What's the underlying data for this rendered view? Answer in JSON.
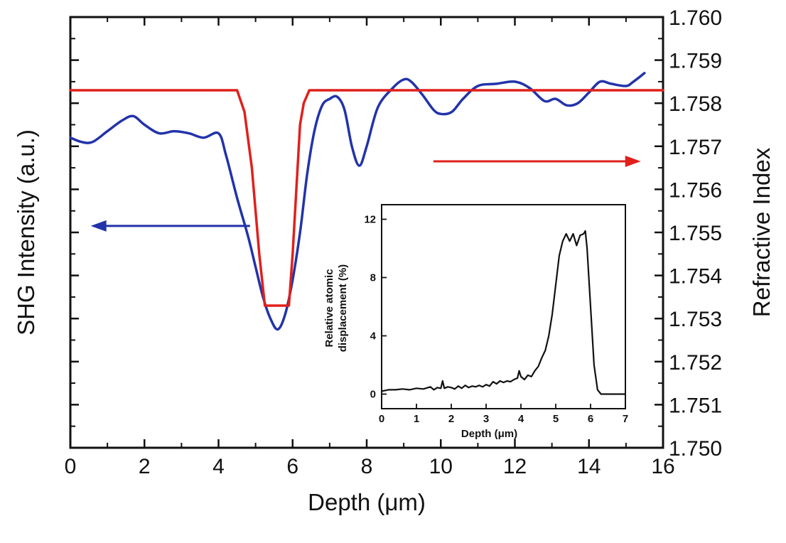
{
  "chart_data": {
    "type": "line",
    "main": {
      "xlabel": "Depth (μm)",
      "ylabel_left": "SHG Intensity (a.u.)",
      "ylabel_right": "Refractive Index",
      "xlim": [
        0,
        16
      ],
      "x_ticks": [
        "0",
        "2",
        "4",
        "6",
        "8",
        "10",
        "12",
        "14",
        "16"
      ],
      "ylim_right": [
        1.75,
        1.76
      ],
      "right_ticks": [
        "1.750",
        "1.751",
        "1.752",
        "1.753",
        "1.754",
        "1.755",
        "1.756",
        "1.757",
        "1.758",
        "1.759",
        "1.760"
      ],
      "left_axis_units": "arbitrary (0-10 scale, unlabeled ticks)",
      "series": [
        {
          "name": "SHG Intensity",
          "axis": "left",
          "color": "#2233aa",
          "x": [
            0,
            0.3,
            0.6,
            1.0,
            1.4,
            1.7,
            2.0,
            2.4,
            2.8,
            3.2,
            3.6,
            4.0,
            4.2,
            4.5,
            4.8,
            5.0,
            5.2,
            5.4,
            5.6,
            5.8,
            6.0,
            6.2,
            6.4,
            6.6,
            6.8,
            7.0,
            7.2,
            7.4,
            7.6,
            7.8,
            8.0,
            8.3,
            8.7,
            9.0,
            9.2,
            9.5,
            9.8,
            10.0,
            10.3,
            10.6,
            11.0,
            11.5,
            12.0,
            12.4,
            12.8,
            13.1,
            13.4,
            13.7,
            14.0,
            14.3,
            14.6,
            15.0,
            15.2,
            15.5
          ],
          "y": [
            7.2,
            7.1,
            7.1,
            7.35,
            7.6,
            7.7,
            7.5,
            7.3,
            7.35,
            7.3,
            7.2,
            7.3,
            6.8,
            5.8,
            4.9,
            4.2,
            3.5,
            3.0,
            2.75,
            3.1,
            3.9,
            5.0,
            6.4,
            7.4,
            7.95,
            8.1,
            8.15,
            7.85,
            7.0,
            6.55,
            7.0,
            7.9,
            8.35,
            8.55,
            8.5,
            8.2,
            7.85,
            7.75,
            7.8,
            8.1,
            8.4,
            8.45,
            8.5,
            8.35,
            8.05,
            8.1,
            7.95,
            8.0,
            8.25,
            8.5,
            8.45,
            8.4,
            8.5,
            8.7
          ]
        },
        {
          "name": "Refractive Index",
          "axis": "right",
          "color": "#e0201b",
          "x": [
            0,
            4.5,
            4.7,
            4.9,
            5.1,
            5.25,
            5.35,
            5.9,
            6.0,
            6.1,
            6.2,
            6.3,
            6.45,
            16
          ],
          "y": [
            1.7583,
            1.7583,
            1.7578,
            1.7565,
            1.7545,
            1.7533,
            1.7533,
            1.7533,
            1.7545,
            1.756,
            1.7575,
            1.758,
            1.7583,
            1.7583
          ]
        }
      ],
      "annotations": [
        {
          "type": "arrow",
          "color": "#2233aa",
          "direction": "left",
          "meaning": "blue curve uses left axis"
        },
        {
          "type": "arrow",
          "color": "#e0201b",
          "direction": "right",
          "meaning": "red curve uses right axis"
        }
      ]
    },
    "inset": {
      "xlabel": "Depth (μm)",
      "ylabel_line1": "Relative atomic",
      "ylabel_line2": "displacement (%)",
      "xlim": [
        0,
        7
      ],
      "ylim": [
        -1,
        13
      ],
      "x_ticks": [
        "0",
        "1",
        "2",
        "3",
        "4",
        "5",
        "6",
        "7"
      ],
      "y_ticks": [
        "0",
        "4",
        "8",
        "12"
      ],
      "series": [
        {
          "name": "Relative atomic displacement",
          "color": "#111111",
          "x": [
            0,
            0.2,
            0.4,
            0.6,
            0.8,
            1.0,
            1.2,
            1.4,
            1.5,
            1.6,
            1.7,
            1.75,
            1.8,
            1.9,
            2.0,
            2.1,
            2.2,
            2.3,
            2.4,
            2.5,
            2.6,
            2.7,
            2.8,
            2.9,
            3.0,
            3.1,
            3.2,
            3.3,
            3.4,
            3.5,
            3.6,
            3.7,
            3.8,
            3.9,
            3.95,
            4.0,
            4.1,
            4.2,
            4.3,
            4.4,
            4.5,
            4.6,
            4.7,
            4.8,
            4.9,
            5.0,
            5.1,
            5.2,
            5.3,
            5.4,
            5.5,
            5.6,
            5.7,
            5.8,
            5.85,
            5.9,
            6.0,
            6.1,
            6.2,
            6.3,
            6.5,
            7.0
          ],
          "y": [
            0.2,
            0.3,
            0.3,
            0.35,
            0.3,
            0.4,
            0.35,
            0.5,
            0.3,
            0.45,
            0.4,
            0.9,
            0.4,
            0.5,
            0.45,
            0.35,
            0.55,
            0.4,
            0.6,
            0.45,
            0.55,
            0.5,
            0.6,
            0.5,
            0.65,
            0.55,
            0.85,
            0.7,
            0.9,
            0.8,
            0.9,
            0.85,
            1.0,
            1.1,
            1.6,
            1.2,
            1.0,
            1.3,
            1.2,
            1.6,
            1.9,
            2.5,
            3.0,
            4.0,
            5.5,
            7.5,
            9.5,
            10.5,
            11.0,
            10.5,
            11.0,
            10.2,
            10.9,
            11.0,
            11.2,
            10.0,
            6.0,
            2.0,
            0.3,
            0.0,
            0.0,
            0.0
          ]
        }
      ]
    }
  }
}
